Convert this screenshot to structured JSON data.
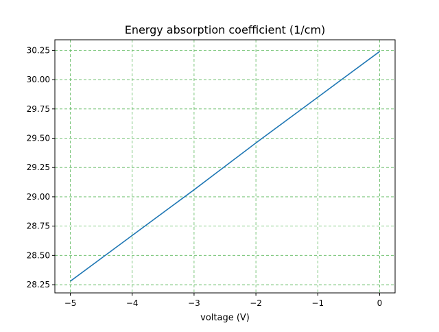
{
  "chart_data": {
    "type": "line",
    "title": "Energy absorption coefficient (1/cm)",
    "xlabel": "voltage (V)",
    "ylabel": "",
    "xlim": [
      -5.25,
      0.25
    ],
    "ylim": [
      28.18,
      30.34
    ],
    "x_ticks": [
      -5,
      -4,
      -3,
      -2,
      -1,
      0
    ],
    "x_tick_labels": [
      "−5",
      "−4",
      "−3",
      "−2",
      "−1",
      "0"
    ],
    "y_ticks": [
      28.25,
      28.5,
      28.75,
      29.0,
      29.25,
      29.5,
      29.75,
      30.0,
      30.25
    ],
    "y_tick_labels": [
      "28.25",
      "28.50",
      "28.75",
      "29.00",
      "29.25",
      "29.50",
      "29.75",
      "30.00",
      "30.25"
    ],
    "grid": true,
    "grid_color": "#5cb85c",
    "line_color": "#1f77b4",
    "series": [
      {
        "x": [
          -5,
          -4,
          -3,
          -2,
          -1,
          0
        ],
        "y": [
          28.28,
          28.67,
          29.06,
          29.46,
          29.85,
          30.24
        ]
      }
    ]
  }
}
